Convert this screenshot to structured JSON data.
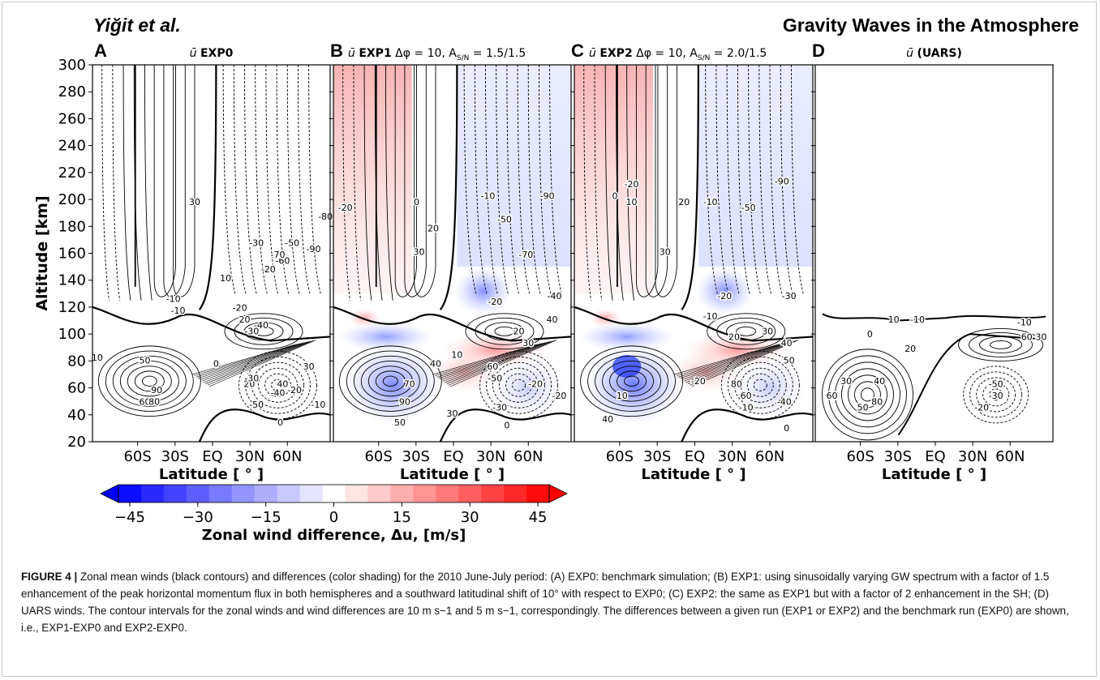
{
  "header": {
    "authors": "Yiğit et al.",
    "journal_title": "Gravity Waves in the Atmosphere"
  },
  "panels": [
    {
      "letter": "A",
      "title": "ū EXP0",
      "bar": "ū",
      "title_bold": "EXP0",
      "title_extra": ""
    },
    {
      "letter": "B",
      "title": "ū EXP1 Δφ = 10, AS/N = 1.5/1.5",
      "bar": "ū",
      "title_bold": "EXP1",
      "title_extra": "Δφ = 10, A",
      "sub": "S/N",
      "extra2": " = 1.5/1.5"
    },
    {
      "letter": "C",
      "title": "ū EXP2 Δφ = 10, AS/N = 2.0/1.5",
      "bar": "ū",
      "title_bold": "EXP2",
      "title_extra": "Δφ = 10, A",
      "sub": "S/N",
      "extra2": " = 2.0/1.5"
    },
    {
      "letter": "D",
      "title": "ū (UARS)",
      "bar": "ū",
      "title_bold": "(UARS)",
      "title_extra": ""
    }
  ],
  "axes": {
    "ylabel": "Altitude [km]",
    "xlabel": "Latitude [ ° ]",
    "yticks": [
      "300",
      "280",
      "260",
      "240",
      "220",
      "200",
      "180",
      "160",
      "140",
      "120",
      "100",
      "80",
      "60",
      "40",
      "20"
    ],
    "xticks": [
      "60S",
      "30S",
      "EQ",
      "30N",
      "60N"
    ]
  },
  "colorbar": {
    "label": "Zonal wind difference, Δu, [m/s]",
    "ticks": [
      "−45",
      "−30",
      "−15",
      "0",
      "15",
      "30",
      "45"
    ],
    "colors": {
      "negative": "#0000ff",
      "zero": "#ffffff",
      "positive": "#ff0000"
    }
  },
  "chart_data": [
    {
      "type": "heatmap",
      "panel": "A",
      "title": "ū EXP0",
      "xlabel": "Latitude [ ° ]",
      "ylabel": "Altitude [km]",
      "ylim": [
        20,
        300
      ],
      "xticks": [
        "60S",
        "30S",
        "EQ",
        "30N",
        "60N"
      ],
      "contour_labels": [
        "-10",
        "-20",
        "-30",
        "10",
        "20",
        "30",
        "-10",
        "-20",
        "-30",
        "-40",
        "-50",
        "-60",
        "-70",
        "-80",
        "-90",
        "0",
        "10",
        "20",
        "30",
        "40",
        "50",
        "60",
        "80",
        "90",
        "-30",
        "-40",
        "-50",
        "-20",
        "-10",
        "0"
      ]
    },
    {
      "type": "heatmap",
      "panel": "B",
      "title": "ū EXP1 Δφ = 10, AS/N = 1.5/1.5",
      "xlabel": "Latitude [ ° ]",
      "ylim": [
        20,
        300
      ],
      "xticks": [
        "60S",
        "30S",
        "EQ",
        "30N",
        "60N"
      ],
      "contour_labels": [
        "-20",
        "0",
        "20",
        "30",
        "-10",
        "-50",
        "-70",
        "-90",
        "-20",
        "-40",
        "20",
        "30",
        "40",
        "10",
        "-20",
        "40",
        "60",
        "90",
        "70",
        "50",
        "30",
        "-50",
        "-30",
        "-20",
        "0"
      ]
    },
    {
      "type": "heatmap",
      "panel": "C",
      "title": "ū EXP2 Δφ = 10, AS/N = 2.0/1.5",
      "xlabel": "Latitude [ ° ]",
      "ylim": [
        20,
        300
      ],
      "xticks": [
        "60S",
        "30S",
        "EQ",
        "30N",
        "60N"
      ],
      "contour_labels": [
        "0",
        "-20",
        "10",
        "20",
        "30",
        "-10",
        "-50",
        "-90",
        "-20",
        "-30",
        "-10",
        "20",
        "30",
        "40",
        "50",
        "80",
        "60",
        "10",
        "40",
        "-40",
        "-20",
        "-10",
        "0"
      ]
    },
    {
      "type": "heatmap",
      "panel": "D",
      "title": "ū (UARS)",
      "xlabel": "Latitude [ ° ]",
      "ylim": [
        20,
        300
      ],
      "xticks": [
        "60S",
        "30S",
        "EQ",
        "30N",
        "60N"
      ],
      "contour_labels": [
        "10",
        "-10",
        "0",
        "20",
        "30",
        "40",
        "60",
        "-10",
        "-50",
        "30",
        "60",
        "50",
        "80",
        "-20",
        "-30"
      ]
    }
  ],
  "caption": {
    "label": "FIGURE 4 |",
    "text": "Zonal mean winds (black contours) and differences (color shading) for the 2010 June-July period: (A) EXP0: benchmark simulation; (B) EXP1: using sinusoidally varying GW spectrum with a factor of 1.5 enhancement of the peak horizontal momentum flux in both hemispheres and a southward latitudinal shift of 10° with respect to EXP0; (C) EXP2: the same as EXP1 but with a factor of 2 enhancement in the SH; (D) UARS winds. The contour intervals for the zonal winds and wind differences are 10 m s−1 and 5 m s−1, correspondingly. The differences between a given run (EXP1 or EXP2) and the benchmark run (EXP0) are shown, i.e., EXP1-EXP0 and EXP2-EXP0."
  }
}
